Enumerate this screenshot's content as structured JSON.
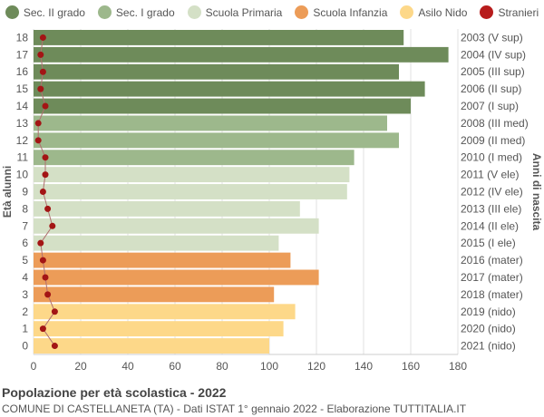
{
  "chart_data": {
    "type": "bar",
    "orientation": "horizontal",
    "title": "Popolazione per età scolastica - 2022",
    "subtitle": "COMUNE DI CASTELLANETA (TA) - Dati ISTAT 1° gennaio 2022 - Elaborazione TUTTITALIA.IT",
    "ylabel": "Età alunni",
    "ylabel_right": "Anni di nascita",
    "xlim": [
      0,
      180
    ],
    "xticks": [
      0,
      20,
      40,
      60,
      80,
      100,
      120,
      140,
      160,
      180
    ],
    "grid": true,
    "legend_position": "top",
    "legend": [
      {
        "name": "Sec. II grado",
        "color": "#6e8b5a"
      },
      {
        "name": "Sec. I grado",
        "color": "#9db88c"
      },
      {
        "name": "Scuola Primaria",
        "color": "#d4e0c6"
      },
      {
        "name": "Scuola Infanzia",
        "color": "#ec9c58"
      },
      {
        "name": "Asilo Nido",
        "color": "#fdd889"
      },
      {
        "name": "Stranieri",
        "color": "#b71c1c"
      }
    ],
    "ages": [
      "18",
      "17",
      "16",
      "15",
      "14",
      "13",
      "12",
      "11",
      "10",
      "9",
      "8",
      "7",
      "6",
      "5",
      "4",
      "3",
      "2",
      "1",
      "0"
    ],
    "birth_years": [
      "2003 (V sup)",
      "2004 (IV sup)",
      "2005 (III sup)",
      "2006 (II sup)",
      "2007 (I sup)",
      "2008 (III med)",
      "2009 (II med)",
      "2010 (I med)",
      "2011 (V ele)",
      "2012 (IV ele)",
      "2013 (III ele)",
      "2014 (II ele)",
      "2015 (I ele)",
      "2016 (mater)",
      "2017 (mater)",
      "2018 (mater)",
      "2019 (nido)",
      "2020 (nido)",
      "2021 (nido)"
    ],
    "groups": [
      0,
      0,
      0,
      0,
      0,
      1,
      1,
      1,
      2,
      2,
      2,
      2,
      2,
      3,
      3,
      3,
      4,
      4,
      4
    ],
    "values": [
      157,
      176,
      155,
      166,
      160,
      150,
      155,
      136,
      134,
      133,
      113,
      121,
      104,
      109,
      121,
      102,
      111,
      106,
      100
    ],
    "stranieri": [
      4,
      3,
      4,
      3,
      5,
      2,
      2,
      5,
      5,
      4,
      6,
      8,
      3,
      4,
      5,
      6,
      9,
      4,
      9
    ]
  }
}
